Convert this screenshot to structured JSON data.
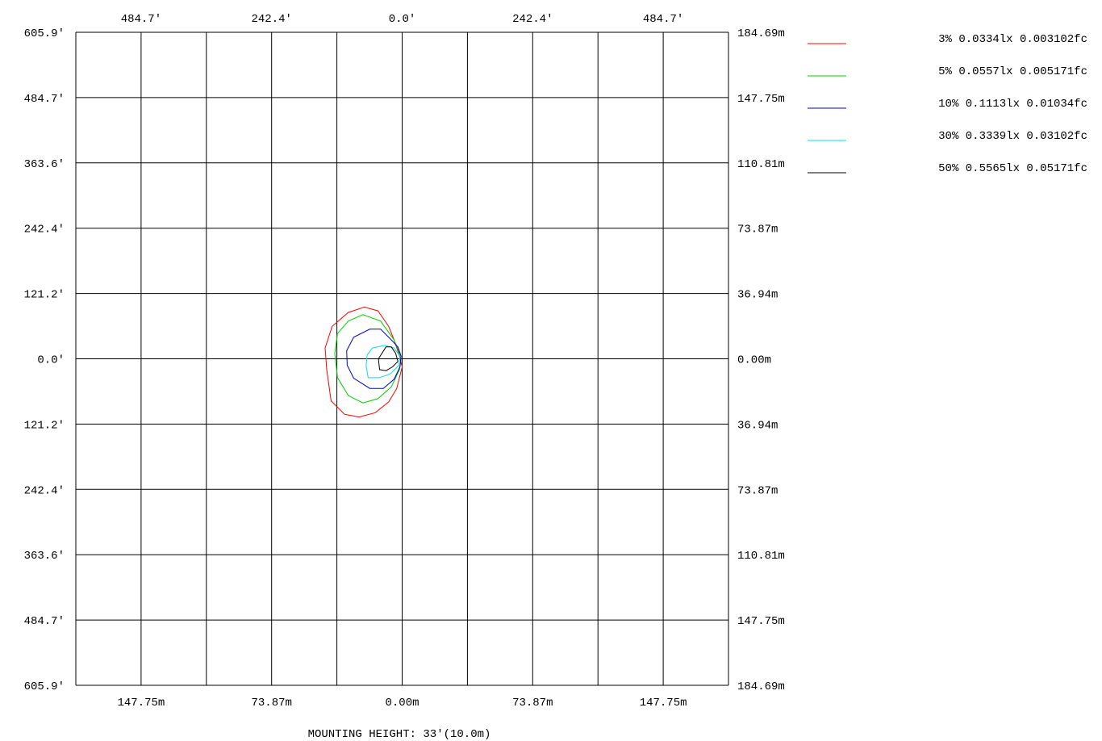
{
  "chart_data": {
    "type": "isolux_contour",
    "top_axis_ticks": [
      "484.7'",
      "242.4'",
      "0.0'",
      "242.4'",
      "484.7'"
    ],
    "bottom_axis_ticks": [
      "147.75m",
      "73.87m",
      "0.00m",
      "73.87m",
      "147.75m"
    ],
    "left_axis_ticks": [
      "605.9'",
      "484.7'",
      "363.6'",
      "242.4'",
      "121.2'",
      "0.0'",
      "121.2'",
      "242.4'",
      "363.6'",
      "484.7'",
      "605.9'"
    ],
    "right_axis_ticks": [
      "184.69m",
      "147.75m",
      "110.81m",
      "73.87m",
      "36.94m",
      "0.00m",
      "36.94m",
      "73.87m",
      "110.81m",
      "147.75m",
      "184.69m"
    ],
    "x_range_ft": [
      -605.9,
      605.9
    ],
    "y_range_ft": [
      -605.9,
      605.9
    ],
    "grid": true,
    "footer": "MOUNTING HEIGHT: 33'(10.0m)",
    "legend_position": "top-right",
    "series": [
      {
        "name": "3% 0.0334lx 0.003102fc",
        "color": "#ff0000",
        "points": [
          [
            -25,
            60
          ],
          [
            -45,
            89
          ],
          [
            -70,
            96
          ],
          [
            -100,
            86
          ],
          [
            -130,
            60
          ],
          [
            -143,
            20
          ],
          [
            -140,
            -20
          ],
          [
            -132,
            -78
          ],
          [
            -107,
            -103
          ],
          [
            -80,
            -108
          ],
          [
            -50,
            -100
          ],
          [
            -25,
            -80
          ],
          [
            -10,
            -55
          ],
          [
            0,
            -15
          ],
          [
            -5,
            5
          ],
          [
            -15,
            35
          ]
        ]
      },
      {
        "name": "5% 0.0557lx 0.005171fc",
        "color": "#00cc00",
        "points": [
          [
            -15,
            35
          ],
          [
            -40,
            70
          ],
          [
            -73,
            82
          ],
          [
            -100,
            70
          ],
          [
            -120,
            47
          ],
          [
            -125,
            10
          ],
          [
            -120,
            -35
          ],
          [
            -100,
            -68
          ],
          [
            -73,
            -82
          ],
          [
            -45,
            -74
          ],
          [
            -20,
            -52
          ],
          [
            -5,
            -20
          ],
          [
            -2,
            0
          ],
          [
            -8,
            18
          ]
        ]
      },
      {
        "name": "10% 0.1113lx 0.01034fc",
        "color": "#0000cc",
        "points": [
          [
            -20,
            35
          ],
          [
            -40,
            55
          ],
          [
            -60,
            55
          ],
          [
            -90,
            40
          ],
          [
            -103,
            15
          ],
          [
            -102,
            -12
          ],
          [
            -90,
            -36
          ],
          [
            -60,
            -55
          ],
          [
            -35,
            -55
          ],
          [
            -15,
            -38
          ],
          [
            -4,
            -15
          ],
          [
            -2,
            5
          ],
          [
            -8,
            22
          ]
        ]
      },
      {
        "name": "30% 0.3339lx 0.03102fc",
        "color": "#00e0e0",
        "points": [
          [
            -15,
            20
          ],
          [
            -32,
            25
          ],
          [
            -55,
            20
          ],
          [
            -65,
            7
          ],
          [
            -67,
            -13
          ],
          [
            -63,
            -35
          ],
          [
            -42,
            -35
          ],
          [
            -22,
            -28
          ],
          [
            -6,
            -12
          ],
          [
            -4,
            5
          ]
        ]
      },
      {
        "name": "50% 0.5565lx 0.05171fc",
        "color": "#000000",
        "points": [
          [
            -20,
            22
          ],
          [
            -30,
            22
          ],
          [
            -44,
            0
          ],
          [
            -42,
            -20
          ],
          [
            -30,
            -22
          ],
          [
            -18,
            -15
          ],
          [
            -8,
            -5
          ],
          [
            -12,
            10
          ]
        ]
      }
    ]
  }
}
